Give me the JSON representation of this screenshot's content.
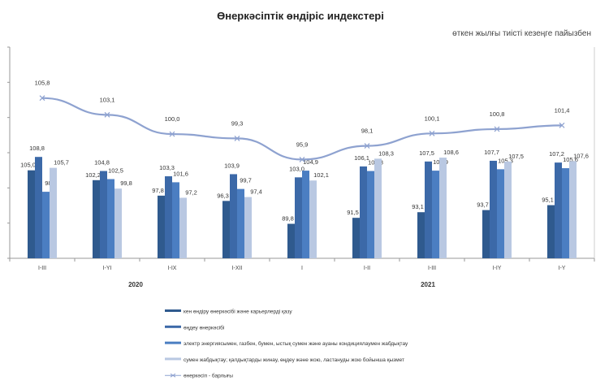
{
  "chart_data": {
    "type": "bar",
    "title": "Өнеркәсіптік өндіріс индекстері",
    "subtitle": "өткен жылғы тиісті кезеңге пайызбен",
    "categories": [
      "I-III",
      "I-YI",
      "I-IX",
      "I-XII",
      "I",
      "I-II",
      "I-III",
      "I-IY",
      "I-Y"
    ],
    "years": [
      {
        "label": "2020"
      },
      {
        "label": "2021"
      }
    ],
    "bar_ylim": [
      80,
      140
    ],
    "line_ylim": [
      80,
      114
    ],
    "grid": false,
    "legend_position": "bottom",
    "series": [
      {
        "name": "кен өндіру өнеркәсібі және карьерлерді қазу",
        "kind": "bar",
        "color": "#2F5A8E",
        "values": [
          105.0,
          102.2,
          97.8,
          96.3,
          89.8,
          91.5,
          93.1,
          93.7,
          95.1
        ],
        "labels": [
          "105,0",
          "102,2",
          "97,8",
          "96,3",
          "89,8",
          "91,5",
          "93,1",
          "93,7",
          "95,1"
        ]
      },
      {
        "name": "өңдеу өнеркәсібі",
        "kind": "bar",
        "color": "#3C69A8",
        "values": [
          108.8,
          104.8,
          103.3,
          103.9,
          103.0,
          106.1,
          107.5,
          107.7,
          107.2
        ],
        "labels": [
          "108,8",
          "104,8",
          "103,3",
          "103,9",
          "103,0",
          "106,1",
          "107,5",
          "107,7",
          "107,2"
        ]
      },
      {
        "name": "электр энергиясымен, газбен, бумен, ыстық сумен және ауаны кондициялаумен жабдықтау",
        "kind": "bar",
        "color": "#4B7EC2",
        "values": [
          98.9,
          102.5,
          101.6,
          99.7,
          104.9,
          104.8,
          104.9,
          105.3,
          105.6
        ],
        "labels": [
          "98,9",
          "102,5",
          "101,6",
          "99,7",
          "104,9",
          "104,8",
          "104,9",
          "105,3",
          "105,6"
        ]
      },
      {
        "name": "сумен жабдықтау; қалдықтарды жинау, өңдеу және жою, ластануды жою бойынша қызмет",
        "kind": "bar",
        "color": "#B9C8E2",
        "values": [
          105.7,
          99.8,
          97.2,
          97.4,
          102.1,
          108.3,
          108.6,
          107.5,
          107.6
        ],
        "labels": [
          "105,7",
          "99,8",
          "97,2",
          "97,4",
          "102,1",
          "108,3",
          "108,6",
          "107,5",
          "107,6"
        ]
      },
      {
        "name": "өнеркәсіп - барлығы",
        "kind": "line",
        "color": "#8EA2D0",
        "values": [
          105.8,
          103.1,
          100.0,
          99.3,
          95.9,
          98.1,
          100.1,
          100.8,
          101.4
        ],
        "labels": [
          "105,8",
          "103,1",
          "100,0",
          "99,3",
          "95,9",
          "98,1",
          "100,1",
          "100,8",
          "101,4"
        ]
      }
    ]
  }
}
